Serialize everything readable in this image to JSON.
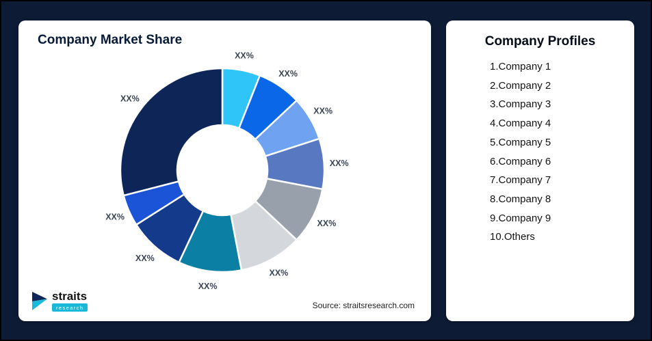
{
  "page": {
    "background": "#0D1B35"
  },
  "market_share_card": {
    "title": "Company Market Share",
    "source_note": "Source: straitsresearch.com",
    "logo": {
      "brand": "straits",
      "brand_sub": "research",
      "icon": "straits-logo-icon",
      "navy": "#0E2558",
      "teal": "#1BB9DB"
    }
  },
  "profiles_card": {
    "title": "Company Profiles",
    "items": [
      "1.Company 1",
      "2.Company 2",
      "3.Company 3",
      "4.Company 4",
      "5.Company 5",
      "6.Company 6",
      "7.Company 7",
      "8.Company 8",
      "9.Company 9",
      "10.Others"
    ]
  },
  "chart_data": {
    "type": "pie",
    "variant": "donut",
    "title": "Company Market Share",
    "legend": "none",
    "start_angle_deg": -90,
    "direction": "clockwise",
    "segments": [
      {
        "name": "Company 1",
        "label": "XX%",
        "value": 6,
        "color": "#30C5F8"
      },
      {
        "name": "Company 2",
        "label": "XX%",
        "value": 7,
        "color": "#0A68E8"
      },
      {
        "name": "Company 3",
        "label": "XX%",
        "value": 7,
        "color": "#6FA3F2"
      },
      {
        "name": "Company 4",
        "label": "XX%",
        "value": 8,
        "color": "#5878C2"
      },
      {
        "name": "Company 5",
        "label": "XX%",
        "value": 9,
        "color": "#98A0AB"
      },
      {
        "name": "Company 6",
        "label": "XX%",
        "value": 10,
        "color": "#D4D8DD"
      },
      {
        "name": "Company 7",
        "label": "XX%",
        "value": 10,
        "color": "#0B7FA4"
      },
      {
        "name": "Company 8",
        "label": "XX%",
        "value": 9,
        "color": "#143A8C"
      },
      {
        "name": "Company 9",
        "label": "XX%",
        "value": 5,
        "color": "#1C54D8"
      },
      {
        "name": "Others",
        "label": "XX%",
        "value": 29,
        "color": "#0E2558"
      }
    ]
  }
}
